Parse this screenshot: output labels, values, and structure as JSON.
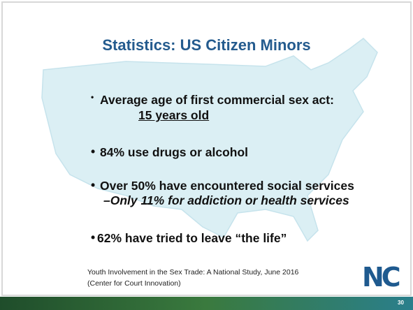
{
  "slide": {
    "title": "Statistics: US Citizen Minors",
    "bullets": [
      {
        "text": "Average age of first commercial sex act:",
        "detail": "15 years old"
      },
      {
        "text": "84% use drugs or alcohol"
      },
      {
        "text": "Over 50% have encountered social services",
        "sub": "–Only 11% for addiction or health services"
      },
      {
        "text": "62% have tried to leave “the life”"
      }
    ],
    "citation": [
      "Youth Involvement in the Sex Trade: A National Study, June 2016",
      "(Center for Court Innovation)"
    ],
    "logo": "NC",
    "page_number": "30"
  }
}
